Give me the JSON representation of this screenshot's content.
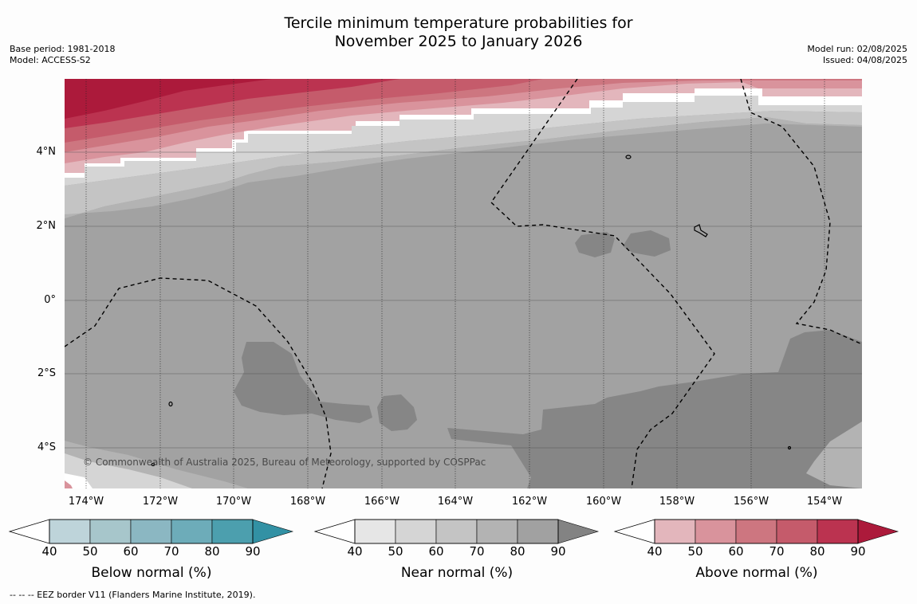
{
  "title_line1": "Tercile minimum temperature probabilities for",
  "title_line2": "November 2025 to January 2026",
  "base_period": "Base period: 1981-2018",
  "model": "Model: ACCESS-S2",
  "model_run": "Model run: 02/08/2025",
  "issued": "Issued: 04/08/2025",
  "lat_labels": [
    "4°N",
    "2°N",
    "0°",
    "2°S",
    "4°S"
  ],
  "lon_labels": [
    "174°W",
    "172°W",
    "170°W",
    "168°W",
    "166°W",
    "164°W",
    "162°W",
    "160°W",
    "158°W",
    "156°W",
    "154°W"
  ],
  "copyright": "© Commonwealth of Australia 2025, Bureau of Meteorology, supported by COSPPac",
  "colorbars": [
    {
      "label": "Below normal (%)",
      "ticks": [
        "40",
        "50",
        "60",
        "70",
        "80",
        "90"
      ],
      "colors": [
        "#bed4da",
        "#a7c6cb",
        "#8bb7c2",
        "#6dacb9",
        "#4c9fae",
        "#3291a4"
      ]
    },
    {
      "label": "Near normal (%)",
      "ticks": [
        "40",
        "50",
        "60",
        "70",
        "80",
        "90"
      ],
      "colors": [
        "#e6e6e6",
        "#d5d5d5",
        "#c4c4c4",
        "#b3b3b3",
        "#a1a1a1",
        "#838383"
      ]
    },
    {
      "label": "Above normal (%)",
      "ticks": [
        "40",
        "50",
        "60",
        "70",
        "80",
        "90"
      ],
      "colors": [
        "#e3b6bc",
        "#d9939c",
        "#cd7680",
        "#c55b6b",
        "#bb3350",
        "#ac1a3b"
      ]
    }
  ],
  "eez_note": "--  --  -- EEZ border V11 (Flanders Marine Institute, 2019)."
}
